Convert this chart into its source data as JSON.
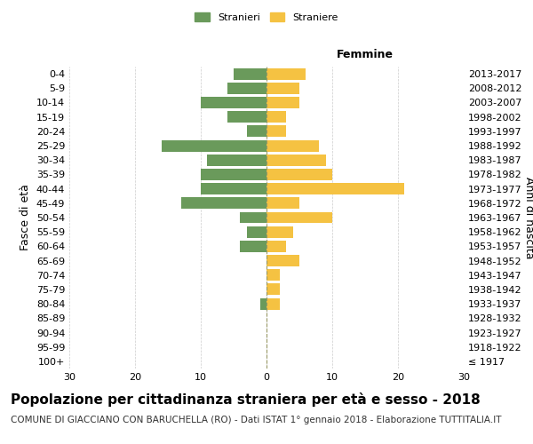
{
  "age_groups": [
    "100+",
    "95-99",
    "90-94",
    "85-89",
    "80-84",
    "75-79",
    "70-74",
    "65-69",
    "60-64",
    "55-59",
    "50-54",
    "45-49",
    "40-44",
    "35-39",
    "30-34",
    "25-29",
    "20-24",
    "15-19",
    "10-14",
    "5-9",
    "0-4"
  ],
  "birth_years": [
    "≤ 1917",
    "1918-1922",
    "1923-1927",
    "1928-1932",
    "1933-1937",
    "1938-1942",
    "1943-1947",
    "1948-1952",
    "1953-1957",
    "1958-1962",
    "1963-1967",
    "1968-1972",
    "1973-1977",
    "1978-1982",
    "1983-1987",
    "1988-1992",
    "1993-1997",
    "1998-2002",
    "2003-2007",
    "2008-2012",
    "2013-2017"
  ],
  "males": [
    0,
    0,
    0,
    0,
    1,
    0,
    0,
    0,
    4,
    3,
    4,
    13,
    10,
    10,
    9,
    16,
    3,
    6,
    10,
    6,
    5
  ],
  "females": [
    0,
    0,
    0,
    0,
    2,
    2,
    2,
    5,
    3,
    4,
    10,
    5,
    21,
    10,
    9,
    8,
    3,
    3,
    5,
    5,
    6
  ],
  "male_color": "#6a9a5b",
  "female_color": "#f5c242",
  "background_color": "#ffffff",
  "grid_color": "#cccccc",
  "center_line_color": "#999966",
  "title": "Popolazione per cittadinanza straniera per età e sesso - 2018",
  "subtitle": "COMUNE DI GIACCIANO CON BARUCHELLA (RO) - Dati ISTAT 1° gennaio 2018 - Elaborazione TUTTITALIA.IT",
  "ylabel_left": "Fasce di età",
  "ylabel_right": "Anni di nascita",
  "xlabel_right": "Femmine",
  "legend_male": "Stranieri",
  "legend_female": "Straniere",
  "xlim": 30,
  "bar_height": 0.8,
  "title_fontsize": 11,
  "subtitle_fontsize": 7.5,
  "tick_fontsize": 8,
  "label_fontsize": 9
}
